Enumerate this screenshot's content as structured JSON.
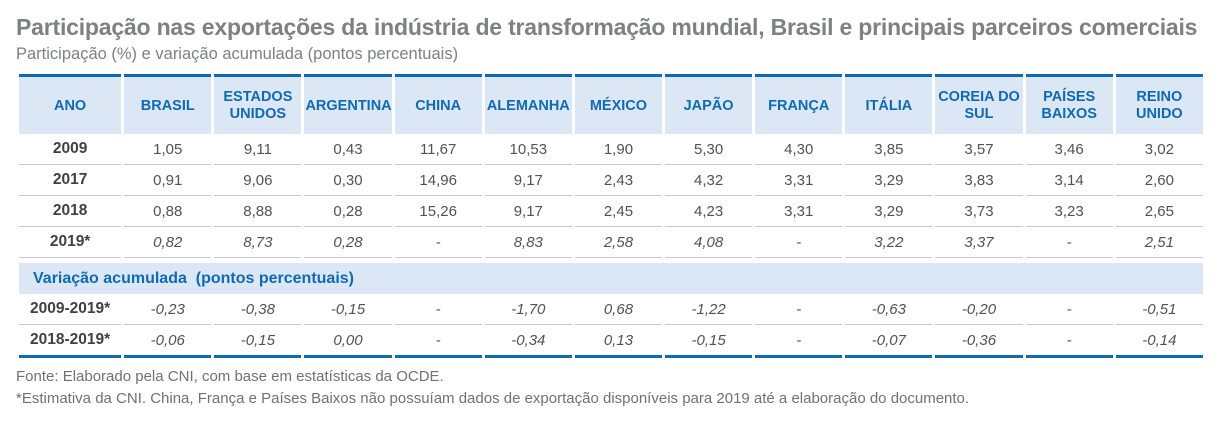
{
  "title": "Participação nas exportações da indústria de transformação mundial, Brasil e principais parceiros comerciais",
  "subtitle": "Participação (%) e variação acumulada (pontos percentuais)",
  "colors": {
    "accent_blue": "#0f6ab2",
    "band_light_blue": "#dbe7f4",
    "title_gray": "#7e8083",
    "data_gray": "#515256",
    "separator_gray": "#c9c9cb"
  },
  "table": {
    "columns": [
      "ANO",
      "BRASIL",
      "ESTADOS UNIDOS",
      "ARGENTINA",
      "CHINA",
      "ALEMANHA",
      "MÉXICO",
      "JAPÃO",
      "FRANÇA",
      "ITÁLIA",
      "COREIA DO SUL",
      "PAÍSES BAIXOS",
      "REINO UNIDO"
    ],
    "participation_rows": [
      {
        "label": "2009",
        "italic": false,
        "values": [
          "1,05",
          "9,11",
          "0,43",
          "11,67",
          "10,53",
          "1,90",
          "5,30",
          "4,30",
          "3,85",
          "3,57",
          "3,46",
          "3,02"
        ]
      },
      {
        "label": "2017",
        "italic": false,
        "values": [
          "0,91",
          "9,06",
          "0,30",
          "14,96",
          "9,17",
          "2,43",
          "4,32",
          "3,31",
          "3,29",
          "3,83",
          "3,14",
          "2,60"
        ]
      },
      {
        "label": "2018",
        "italic": false,
        "values": [
          "0,88",
          "8,88",
          "0,28",
          "15,26",
          "9,17",
          "2,45",
          "4,23",
          "3,31",
          "3,29",
          "3,73",
          "3,23",
          "2,65"
        ]
      },
      {
        "label": "2019*",
        "italic": true,
        "values": [
          "0,82",
          "8,73",
          "0,28",
          "-",
          "8,83",
          "2,58",
          "4,08",
          "-",
          "3,22",
          "3,37",
          "-",
          "2,51"
        ]
      }
    ],
    "section_header": "Variação acumulada  (pontos percentuais)",
    "variation_rows": [
      {
        "label": "2009-2019*",
        "italic": true,
        "values": [
          "-0,23",
          "-0,38",
          "-0,15",
          "-",
          "-1,70",
          "0,68",
          "-1,22",
          "-",
          "-0,63",
          "-0,20",
          "-",
          "-0,51"
        ]
      },
      {
        "label": "2018-2019*",
        "italic": true,
        "values": [
          "-0,06",
          "-0,15",
          "0,00",
          "-",
          "-0,34",
          "0,13",
          "-0,15",
          "-",
          "-0,07",
          "-0,36",
          "-",
          "-0,14"
        ]
      }
    ]
  },
  "footer": {
    "source": "Fonte: Elaborado pela CNI, com base em estatísticas da OCDE.",
    "note": "*Estimativa da CNI. China, França e Países Baixos não possuíam dados de exportação disponíveis para 2019 até a elaboração do documento."
  },
  "chart_data": {
    "type": "table",
    "title": "Participação nas exportações da indústria de transformação mundial, Brasil e principais parceiros comerciais",
    "subtitle": "Participação (%) e variação acumulada (pontos percentuais)",
    "columns": [
      "ANO",
      "BRASIL",
      "ESTADOS UNIDOS",
      "ARGENTINA",
      "CHINA",
      "ALEMANHA",
      "MÉXICO",
      "JAPÃO",
      "FRANÇA",
      "ITÁLIA",
      "COREIA DO SUL",
      "PAÍSES BAIXOS",
      "REINO UNIDO"
    ],
    "rows": [
      [
        "2009",
        "1,05",
        "9,11",
        "0,43",
        "11,67",
        "10,53",
        "1,90",
        "5,30",
        "4,30",
        "3,85",
        "3,57",
        "3,46",
        "3,02"
      ],
      [
        "2017",
        "0,91",
        "9,06",
        "0,30",
        "14,96",
        "9,17",
        "2,43",
        "4,32",
        "3,31",
        "3,29",
        "3,83",
        "3,14",
        "2,60"
      ],
      [
        "2018",
        "0,88",
        "8,88",
        "0,28",
        "15,26",
        "9,17",
        "2,45",
        "4,23",
        "3,31",
        "3,29",
        "3,73",
        "3,23",
        "2,65"
      ],
      [
        "2019*",
        "0,82",
        "8,73",
        "0,28",
        "-",
        "8,83",
        "2,58",
        "4,08",
        "-",
        "3,22",
        "3,37",
        "-",
        "2,51"
      ],
      [
        "2009-2019*",
        "-0,23",
        "-0,38",
        "-0,15",
        "-",
        "-1,70",
        "0,68",
        "-1,22",
        "-",
        "-0,63",
        "-0,20",
        "-",
        "-0,51"
      ],
      [
        "2018-2019*",
        "-0,06",
        "-0,15",
        "0,00",
        "-",
        "-0,34",
        "0,13",
        "-0,15",
        "-",
        "-0,07",
        "-0,36",
        "-",
        "-0,14"
      ]
    ],
    "section_break_after_row": 3,
    "section_label": "Variação acumulada (pontos percentuais)"
  }
}
